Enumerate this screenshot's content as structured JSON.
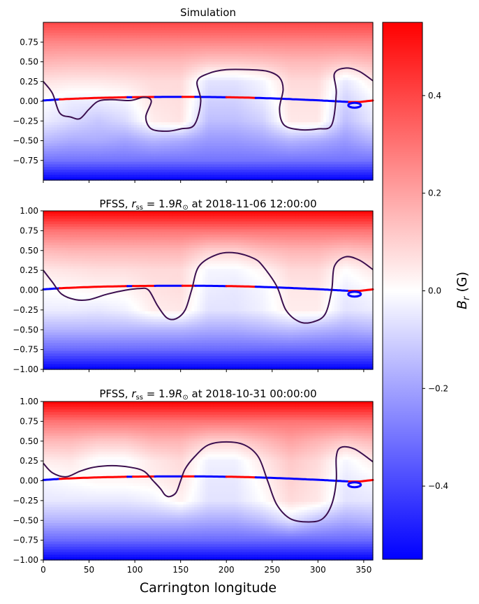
{
  "chart_data": {
    "type": "heatmap",
    "colormap": {
      "name": "bwr",
      "vmin": -0.55,
      "vmax": 0.55,
      "low_color": "#0000ff",
      "mid_color": "#ffffff",
      "high_color": "#ff0000",
      "label_main": "B",
      "label_sub": "r",
      "label_unit": "(G)",
      "ticks": [
        -0.4,
        -0.2,
        0.0,
        0.2,
        0.4
      ],
      "tick_labels": [
        "−0.4",
        "−0.2",
        "0.0",
        "0.2",
        "0.4"
      ]
    },
    "xlabel": "Carrington longitude",
    "xlim": [
      0,
      360
    ],
    "xticks": [
      0,
      50,
      100,
      150,
      200,
      250,
      300,
      350
    ],
    "xtick_labels": [
      "0",
      "50",
      "100",
      "150",
      "200",
      "250",
      "300",
      "350"
    ],
    "neutral_line_color": "#3b0f4f",
    "trajectory": {
      "positive_color": "#ff0000",
      "negative_color": "#0000ff",
      "lon": [
        0,
        20,
        40,
        60,
        80,
        100,
        120,
        140,
        160,
        180,
        200,
        220,
        240,
        260,
        280,
        300,
        320,
        335,
        345,
        360
      ],
      "lat": [
        0.01,
        0.025,
        0.035,
        0.043,
        0.048,
        0.052,
        0.054,
        0.055,
        0.055,
        0.054,
        0.051,
        0.047,
        0.04,
        0.032,
        0.022,
        0.012,
        0.0,
        -0.01,
        -0.01,
        0.01
      ],
      "segments": [
        {
          "from": 0,
          "to": 18,
          "polarity": "negative"
        },
        {
          "from": 18,
          "to": 92,
          "polarity": "positive"
        },
        {
          "from": 92,
          "to": 98,
          "polarity": "negative"
        },
        {
          "from": 98,
          "to": 122,
          "polarity": "positive"
        },
        {
          "from": 122,
          "to": 152,
          "polarity": "negative"
        },
        {
          "from": 152,
          "to": 166,
          "polarity": "positive"
        },
        {
          "from": 166,
          "to": 200,
          "polarity": "negative"
        },
        {
          "from": 200,
          "to": 232,
          "polarity": "positive"
        },
        {
          "from": 232,
          "to": 334,
          "polarity": "negative"
        },
        {
          "from": 334,
          "to": 360,
          "polarity": "positive"
        }
      ],
      "loop_center_lon": 340,
      "loop_center_lat": -0.05
    },
    "panels": [
      {
        "title": "Simulation",
        "ylim": [
          -1.0,
          1.0
        ],
        "yticks": [
          -0.75,
          -0.5,
          -0.25,
          0.0,
          0.25,
          0.5,
          0.75
        ],
        "ytick_labels": [
          "−0.75",
          "−0.50",
          "−0.25",
          "0.00",
          "0.25",
          "0.50",
          "0.75"
        ],
        "show_xticks": false,
        "neutral_line": [
          [
            0,
            0.25
          ],
          [
            10,
            0.1
          ],
          [
            18,
            -0.15
          ],
          [
            30,
            -0.2
          ],
          [
            40,
            -0.22
          ],
          [
            50,
            -0.1
          ],
          [
            60,
            0.0
          ],
          [
            75,
            0.02
          ],
          [
            95,
            0.01
          ],
          [
            110,
            0.05
          ],
          [
            118,
            0.0
          ],
          [
            112,
            -0.2
          ],
          [
            118,
            -0.35
          ],
          [
            135,
            -0.38
          ],
          [
            150,
            -0.35
          ],
          [
            165,
            -0.3
          ],
          [
            172,
            0.0
          ],
          [
            168,
            0.25
          ],
          [
            180,
            0.35
          ],
          [
            200,
            0.4
          ],
          [
            225,
            0.4
          ],
          [
            245,
            0.38
          ],
          [
            258,
            0.3
          ],
          [
            262,
            0.15
          ],
          [
            258,
            -0.1
          ],
          [
            263,
            -0.3
          ],
          [
            280,
            -0.36
          ],
          [
            300,
            -0.35
          ],
          [
            315,
            -0.3
          ],
          [
            320,
            0.1
          ],
          [
            318,
            0.35
          ],
          [
            330,
            0.42
          ],
          [
            345,
            0.38
          ],
          [
            360,
            0.26
          ]
        ],
        "field_lon": [
          0,
          30,
          60,
          90,
          120,
          150,
          180,
          210,
          240,
          270,
          300,
          330,
          360
        ],
        "field_lat": [
          -1.0,
          -0.75,
          -0.5,
          -0.25,
          0.0,
          0.25,
          0.5,
          0.75,
          1.0
        ],
        "field": [
          [
            -0.55,
            -0.55,
            -0.55,
            -0.55,
            -0.55,
            -0.55,
            -0.55,
            -0.55,
            -0.55,
            -0.55,
            -0.55,
            -0.55,
            -0.55
          ],
          [
            -0.3,
            -0.3,
            -0.3,
            -0.3,
            -0.3,
            -0.3,
            -0.3,
            -0.3,
            -0.3,
            -0.3,
            -0.3,
            -0.3,
            -0.3
          ],
          [
            -0.15,
            -0.18,
            -0.18,
            -0.2,
            -0.16,
            -0.18,
            -0.22,
            -0.22,
            -0.2,
            -0.16,
            -0.18,
            -0.22,
            -0.16
          ],
          [
            -0.04,
            -0.08,
            -0.12,
            -0.08,
            0.04,
            0.06,
            -0.14,
            -0.14,
            -0.1,
            0.05,
            0.05,
            -0.14,
            -0.05
          ],
          [
            0.0,
            -0.04,
            -0.04,
            -0.02,
            0.06,
            0.07,
            -0.1,
            -0.1,
            -0.05,
            0.06,
            0.06,
            -0.1,
            -0.02
          ],
          [
            0.06,
            0.05,
            0.05,
            0.06,
            0.08,
            0.08,
            -0.06,
            -0.06,
            -0.02,
            0.08,
            0.08,
            -0.05,
            0.04
          ],
          [
            0.16,
            0.15,
            0.15,
            0.15,
            0.15,
            0.15,
            0.12,
            0.12,
            0.13,
            0.15,
            0.15,
            0.13,
            0.15
          ],
          [
            0.26,
            0.26,
            0.26,
            0.26,
            0.26,
            0.26,
            0.26,
            0.26,
            0.26,
            0.26,
            0.26,
            0.26,
            0.26
          ],
          [
            0.4,
            0.4,
            0.4,
            0.4,
            0.4,
            0.4,
            0.4,
            0.4,
            0.4,
            0.4,
            0.4,
            0.4,
            0.4
          ]
        ]
      },
      {
        "title_prefix": "PFSS, ",
        "title_r": "r",
        "title_r_sub": "ss",
        "title_eq": " = 1.9",
        "title_R": "R",
        "title_R_sub": "⊙",
        "title_suffix": " at 2018-11-06 12:00:00",
        "ylim": [
          -1.0,
          1.0
        ],
        "yticks": [
          -1.0,
          -0.75,
          -0.5,
          -0.25,
          0.0,
          0.25,
          0.5,
          0.75,
          1.0
        ],
        "ytick_labels": [
          "−1.00",
          "−0.75",
          "−0.50",
          "−0.25",
          "0.00",
          "0.25",
          "0.50",
          "0.75",
          "1.00"
        ],
        "show_xticks": false,
        "neutral_line": [
          [
            0,
            0.25
          ],
          [
            10,
            0.1
          ],
          [
            20,
            -0.05
          ],
          [
            35,
            -0.12
          ],
          [
            50,
            -0.12
          ],
          [
            70,
            -0.05
          ],
          [
            90,
            0.0
          ],
          [
            105,
            0.02
          ],
          [
            115,
            0.0
          ],
          [
            125,
            -0.2
          ],
          [
            135,
            -0.35
          ],
          [
            145,
            -0.36
          ],
          [
            155,
            -0.25
          ],
          [
            162,
            0.0
          ],
          [
            170,
            0.3
          ],
          [
            190,
            0.45
          ],
          [
            210,
            0.47
          ],
          [
            230,
            0.4
          ],
          [
            240,
            0.3
          ],
          [
            255,
            0.05
          ],
          [
            265,
            -0.25
          ],
          [
            280,
            -0.4
          ],
          [
            295,
            -0.4
          ],
          [
            308,
            -0.3
          ],
          [
            315,
            0.0
          ],
          [
            318,
            0.3
          ],
          [
            330,
            0.42
          ],
          [
            345,
            0.38
          ],
          [
            360,
            0.26
          ]
        ],
        "field_lon": [
          0,
          30,
          60,
          90,
          120,
          150,
          180,
          210,
          240,
          270,
          300,
          330,
          360
        ],
        "field_lat": [
          -1.0,
          -0.75,
          -0.5,
          -0.25,
          0.0,
          0.25,
          0.5,
          0.75,
          1.0
        ],
        "field": [
          [
            -0.55,
            -0.55,
            -0.55,
            -0.55,
            -0.55,
            -0.55,
            -0.55,
            -0.55,
            -0.55,
            -0.55,
            -0.55,
            -0.55,
            -0.55
          ],
          [
            -0.32,
            -0.32,
            -0.32,
            -0.32,
            -0.32,
            -0.32,
            -0.32,
            -0.32,
            -0.32,
            -0.32,
            -0.32,
            -0.32,
            -0.32
          ],
          [
            -0.16,
            -0.16,
            -0.16,
            -0.16,
            -0.16,
            -0.16,
            -0.18,
            -0.18,
            -0.16,
            -0.14,
            -0.16,
            -0.18,
            -0.16
          ],
          [
            -0.04,
            -0.04,
            -0.05,
            -0.03,
            0.04,
            0.05,
            -0.06,
            -0.06,
            -0.03,
            0.04,
            0.04,
            -0.06,
            -0.04
          ],
          [
            0.0,
            0.01,
            0.02,
            0.02,
            0.06,
            0.07,
            -0.04,
            -0.05,
            -0.02,
            0.05,
            0.05,
            -0.04,
            -0.01
          ],
          [
            0.05,
            0.06,
            0.07,
            0.07,
            0.08,
            0.08,
            -0.02,
            -0.02,
            0.02,
            0.08,
            0.08,
            0.0,
            0.05
          ],
          [
            0.15,
            0.16,
            0.16,
            0.16,
            0.16,
            0.16,
            0.1,
            0.1,
            0.14,
            0.16,
            0.16,
            0.13,
            0.15
          ],
          [
            0.3,
            0.3,
            0.3,
            0.3,
            0.3,
            0.3,
            0.3,
            0.3,
            0.3,
            0.3,
            0.3,
            0.3,
            0.3
          ],
          [
            0.55,
            0.55,
            0.55,
            0.55,
            0.55,
            0.55,
            0.55,
            0.55,
            0.55,
            0.55,
            0.55,
            0.55,
            0.55
          ]
        ]
      },
      {
        "title_prefix": "PFSS, ",
        "title_r": "r",
        "title_r_sub": "ss",
        "title_eq": " = 1.9",
        "title_R": "R",
        "title_R_sub": "⊙",
        "title_suffix": " at 2018-10-31 00:00:00",
        "ylim": [
          -1.0,
          1.0
        ],
        "yticks": [
          -1.0,
          -0.75,
          -0.5,
          -0.25,
          0.0,
          0.25,
          0.5,
          0.75,
          1.0
        ],
        "ytick_labels": [
          "−1.00",
          "−0.75",
          "−0.50",
          "−0.25",
          "0.00",
          "0.25",
          "0.50",
          "0.75",
          "1.00"
        ],
        "show_xticks": true,
        "neutral_line": [
          [
            0,
            0.22
          ],
          [
            10,
            0.1
          ],
          [
            25,
            0.05
          ],
          [
            40,
            0.12
          ],
          [
            55,
            0.17
          ],
          [
            75,
            0.19
          ],
          [
            95,
            0.17
          ],
          [
            110,
            0.12
          ],
          [
            120,
            0.0
          ],
          [
            128,
            -0.1
          ],
          [
            133,
            -0.18
          ],
          [
            138,
            -0.2
          ],
          [
            145,
            -0.15
          ],
          [
            150,
            0.0
          ],
          [
            155,
            0.15
          ],
          [
            165,
            0.3
          ],
          [
            180,
            0.45
          ],
          [
            200,
            0.49
          ],
          [
            220,
            0.45
          ],
          [
            235,
            0.3
          ],
          [
            245,
            0.0
          ],
          [
            255,
            -0.3
          ],
          [
            270,
            -0.48
          ],
          [
            290,
            -0.52
          ],
          [
            305,
            -0.48
          ],
          [
            315,
            -0.3
          ],
          [
            320,
            0.0
          ],
          [
            320,
            0.3
          ],
          [
            325,
            0.42
          ],
          [
            340,
            0.4
          ],
          [
            360,
            0.24
          ]
        ],
        "field_lon": [
          0,
          30,
          60,
          90,
          120,
          150,
          180,
          210,
          240,
          270,
          300,
          330,
          360
        ],
        "field_lat": [
          -1.0,
          -0.75,
          -0.5,
          -0.25,
          0.0,
          0.25,
          0.5,
          0.75,
          1.0
        ],
        "field": [
          [
            -0.55,
            -0.55,
            -0.55,
            -0.55,
            -0.55,
            -0.55,
            -0.55,
            -0.55,
            -0.55,
            -0.55,
            -0.55,
            -0.55,
            -0.55
          ],
          [
            -0.32,
            -0.32,
            -0.32,
            -0.32,
            -0.32,
            -0.32,
            -0.32,
            -0.32,
            -0.32,
            -0.32,
            -0.32,
            -0.32,
            -0.32
          ],
          [
            -0.16,
            -0.16,
            -0.16,
            -0.16,
            -0.16,
            -0.16,
            -0.18,
            -0.18,
            -0.14,
            -0.06,
            -0.14,
            -0.18,
            -0.16
          ],
          [
            -0.05,
            -0.05,
            -0.05,
            -0.05,
            -0.03,
            0.03,
            -0.06,
            -0.06,
            0.0,
            0.08,
            0.05,
            -0.06,
            -0.05
          ],
          [
            -0.02,
            0.0,
            0.02,
            0.02,
            0.03,
            0.06,
            -0.05,
            -0.05,
            0.02,
            0.1,
            0.06,
            -0.05,
            -0.02
          ],
          [
            0.04,
            0.05,
            -0.01,
            -0.01,
            0.05,
            0.08,
            -0.03,
            -0.03,
            0.05,
            0.12,
            0.08,
            -0.02,
            0.04
          ],
          [
            0.15,
            0.15,
            0.12,
            0.12,
            0.16,
            0.16,
            0.1,
            0.1,
            0.15,
            0.2,
            0.16,
            0.12,
            0.15
          ],
          [
            0.3,
            0.3,
            0.3,
            0.3,
            0.3,
            0.3,
            0.3,
            0.3,
            0.3,
            0.3,
            0.3,
            0.3,
            0.3
          ],
          [
            0.55,
            0.55,
            0.55,
            0.55,
            0.55,
            0.55,
            0.55,
            0.55,
            0.55,
            0.55,
            0.55,
            0.55,
            0.55
          ]
        ]
      }
    ]
  }
}
